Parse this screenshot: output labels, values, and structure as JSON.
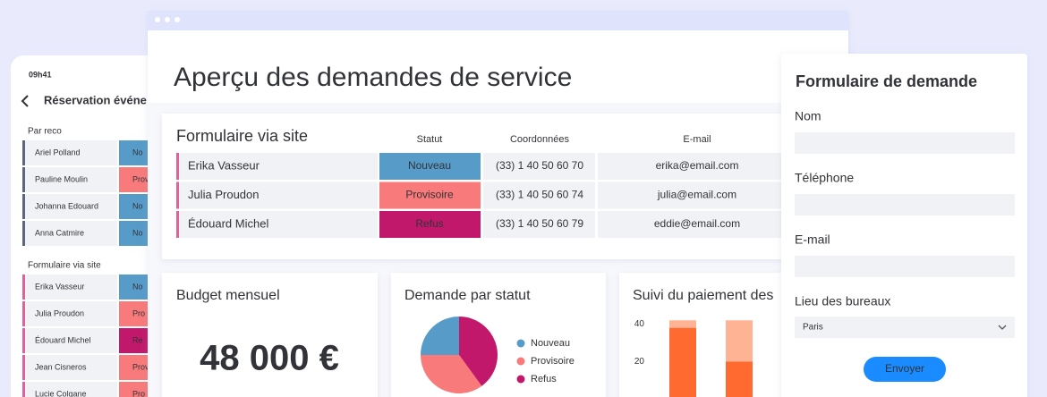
{
  "phone": {
    "time": "09h41",
    "title": "Réservation événe",
    "group1": {
      "title": "Par reco",
      "rows": [
        {
          "name": "Ariel Polland",
          "status": "No",
          "color": "#579bc8"
        },
        {
          "name": "Pauline Moulin",
          "status": "Provi",
          "color": "#f87a7a"
        },
        {
          "name": "Johanna Edouard",
          "status": "No",
          "color": "#579bc8"
        },
        {
          "name": "Anna Catmire",
          "status": "No",
          "color": "#579bc8"
        }
      ]
    },
    "group2": {
      "title": "Formulaire via site",
      "rows": [
        {
          "name": "Erika Vasseur",
          "status": "No",
          "color": "#579bc8"
        },
        {
          "name": "Julia Proudon",
          "status": "Pro",
          "color": "#f87a7a"
        },
        {
          "name": "Édouard Michel",
          "status": "Re",
          "color": "#c2186b"
        },
        {
          "name": "Jean Cisneros",
          "status": "Prov",
          "color": "#f87a7a"
        },
        {
          "name": "Lucie Colgane",
          "status": "Pro",
          "color": "#f87a7a"
        }
      ]
    }
  },
  "main": {
    "title": "Aperçu des demandes de service",
    "table": {
      "title": "Formulaire via site",
      "headers": [
        "Statut",
        "Coordonnées",
        "E-mail"
      ],
      "rows": [
        {
          "name": "Erika Vasseur",
          "status": "Nouveau",
          "color": "#579bc8",
          "phone": "(33) 1 40 50 60 70",
          "email": "erika@email.com"
        },
        {
          "name": "Julia Proudon",
          "status": "Provisoire",
          "color": "#f87a7a",
          "phone": "(33) 1 40 50 60 74",
          "email": "julia@email.com"
        },
        {
          "name": "Édouard Michel",
          "status": "Refus",
          "color": "#c2186b",
          "phone": "(33) 1 40 50 60 79",
          "email": "eddie@email.com"
        }
      ]
    },
    "budget": {
      "title": "Budget mensuel",
      "value": "48 000 €"
    }
  },
  "chart_data": [
    {
      "type": "pie",
      "title": "Demande par statut",
      "categories": [
        "Nouveau",
        "Provisoire",
        "Refus"
      ],
      "values": [
        25,
        35,
        40
      ],
      "colors": [
        "#579bc8",
        "#f87a7a",
        "#c2186b"
      ]
    },
    {
      "type": "bar",
      "title": "Suivi du paiement des",
      "stacked": true,
      "categories": [
        null,
        null
      ],
      "series": [
        {
          "color": "#ff6a30",
          "values": [
            38,
            20
          ]
        },
        {
          "color": "#ffb395",
          "values": [
            4,
            22
          ]
        }
      ],
      "ylim": [
        0,
        45
      ],
      "yticks": [
        20,
        40
      ]
    }
  ],
  "form": {
    "title": "Formulaire de demande",
    "fields": [
      "Nom",
      "Téléphone",
      "E-mail"
    ],
    "select": {
      "label": "Lieu des bureaux",
      "value": "Paris"
    },
    "button": "Envoyer"
  }
}
